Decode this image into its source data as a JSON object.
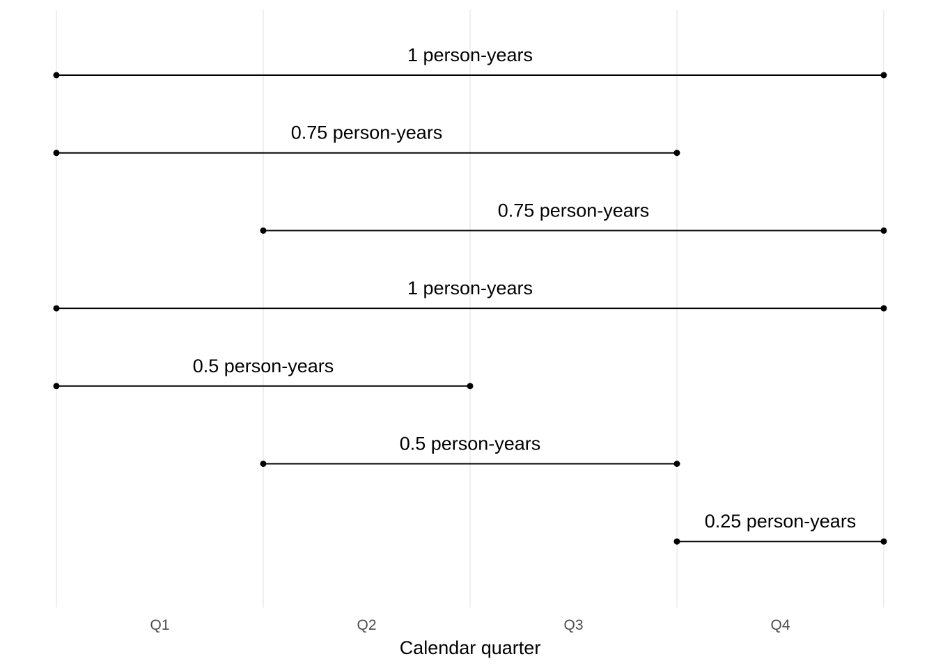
{
  "chart_data": {
    "type": "interval",
    "xlabel": "Calendar quarter",
    "ylabel": "",
    "categories": [
      "Q1",
      "Q2",
      "Q3",
      "Q4"
    ],
    "xlim": [
      0,
      1
    ],
    "grid": true,
    "legend": "none",
    "intervals": [
      {
        "start": 0,
        "end": 1,
        "label": "1 person-years"
      },
      {
        "start": 0,
        "end": 0.75,
        "label": "0.75 person-years"
      },
      {
        "start": 0.25,
        "end": 1,
        "label": "0.75 person-years"
      },
      {
        "start": 0,
        "end": 1,
        "label": "1 person-years"
      },
      {
        "start": 0,
        "end": 0.5,
        "label": "0.5 person-years"
      },
      {
        "start": 0.25,
        "end": 0.75,
        "label": "0.5 person-years"
      },
      {
        "start": 0.75,
        "end": 1,
        "label": "0.25 person-years"
      }
    ],
    "colors": {
      "segment": "#000000",
      "grid": "#ebebeb",
      "tick": "#4d4d4d"
    }
  }
}
